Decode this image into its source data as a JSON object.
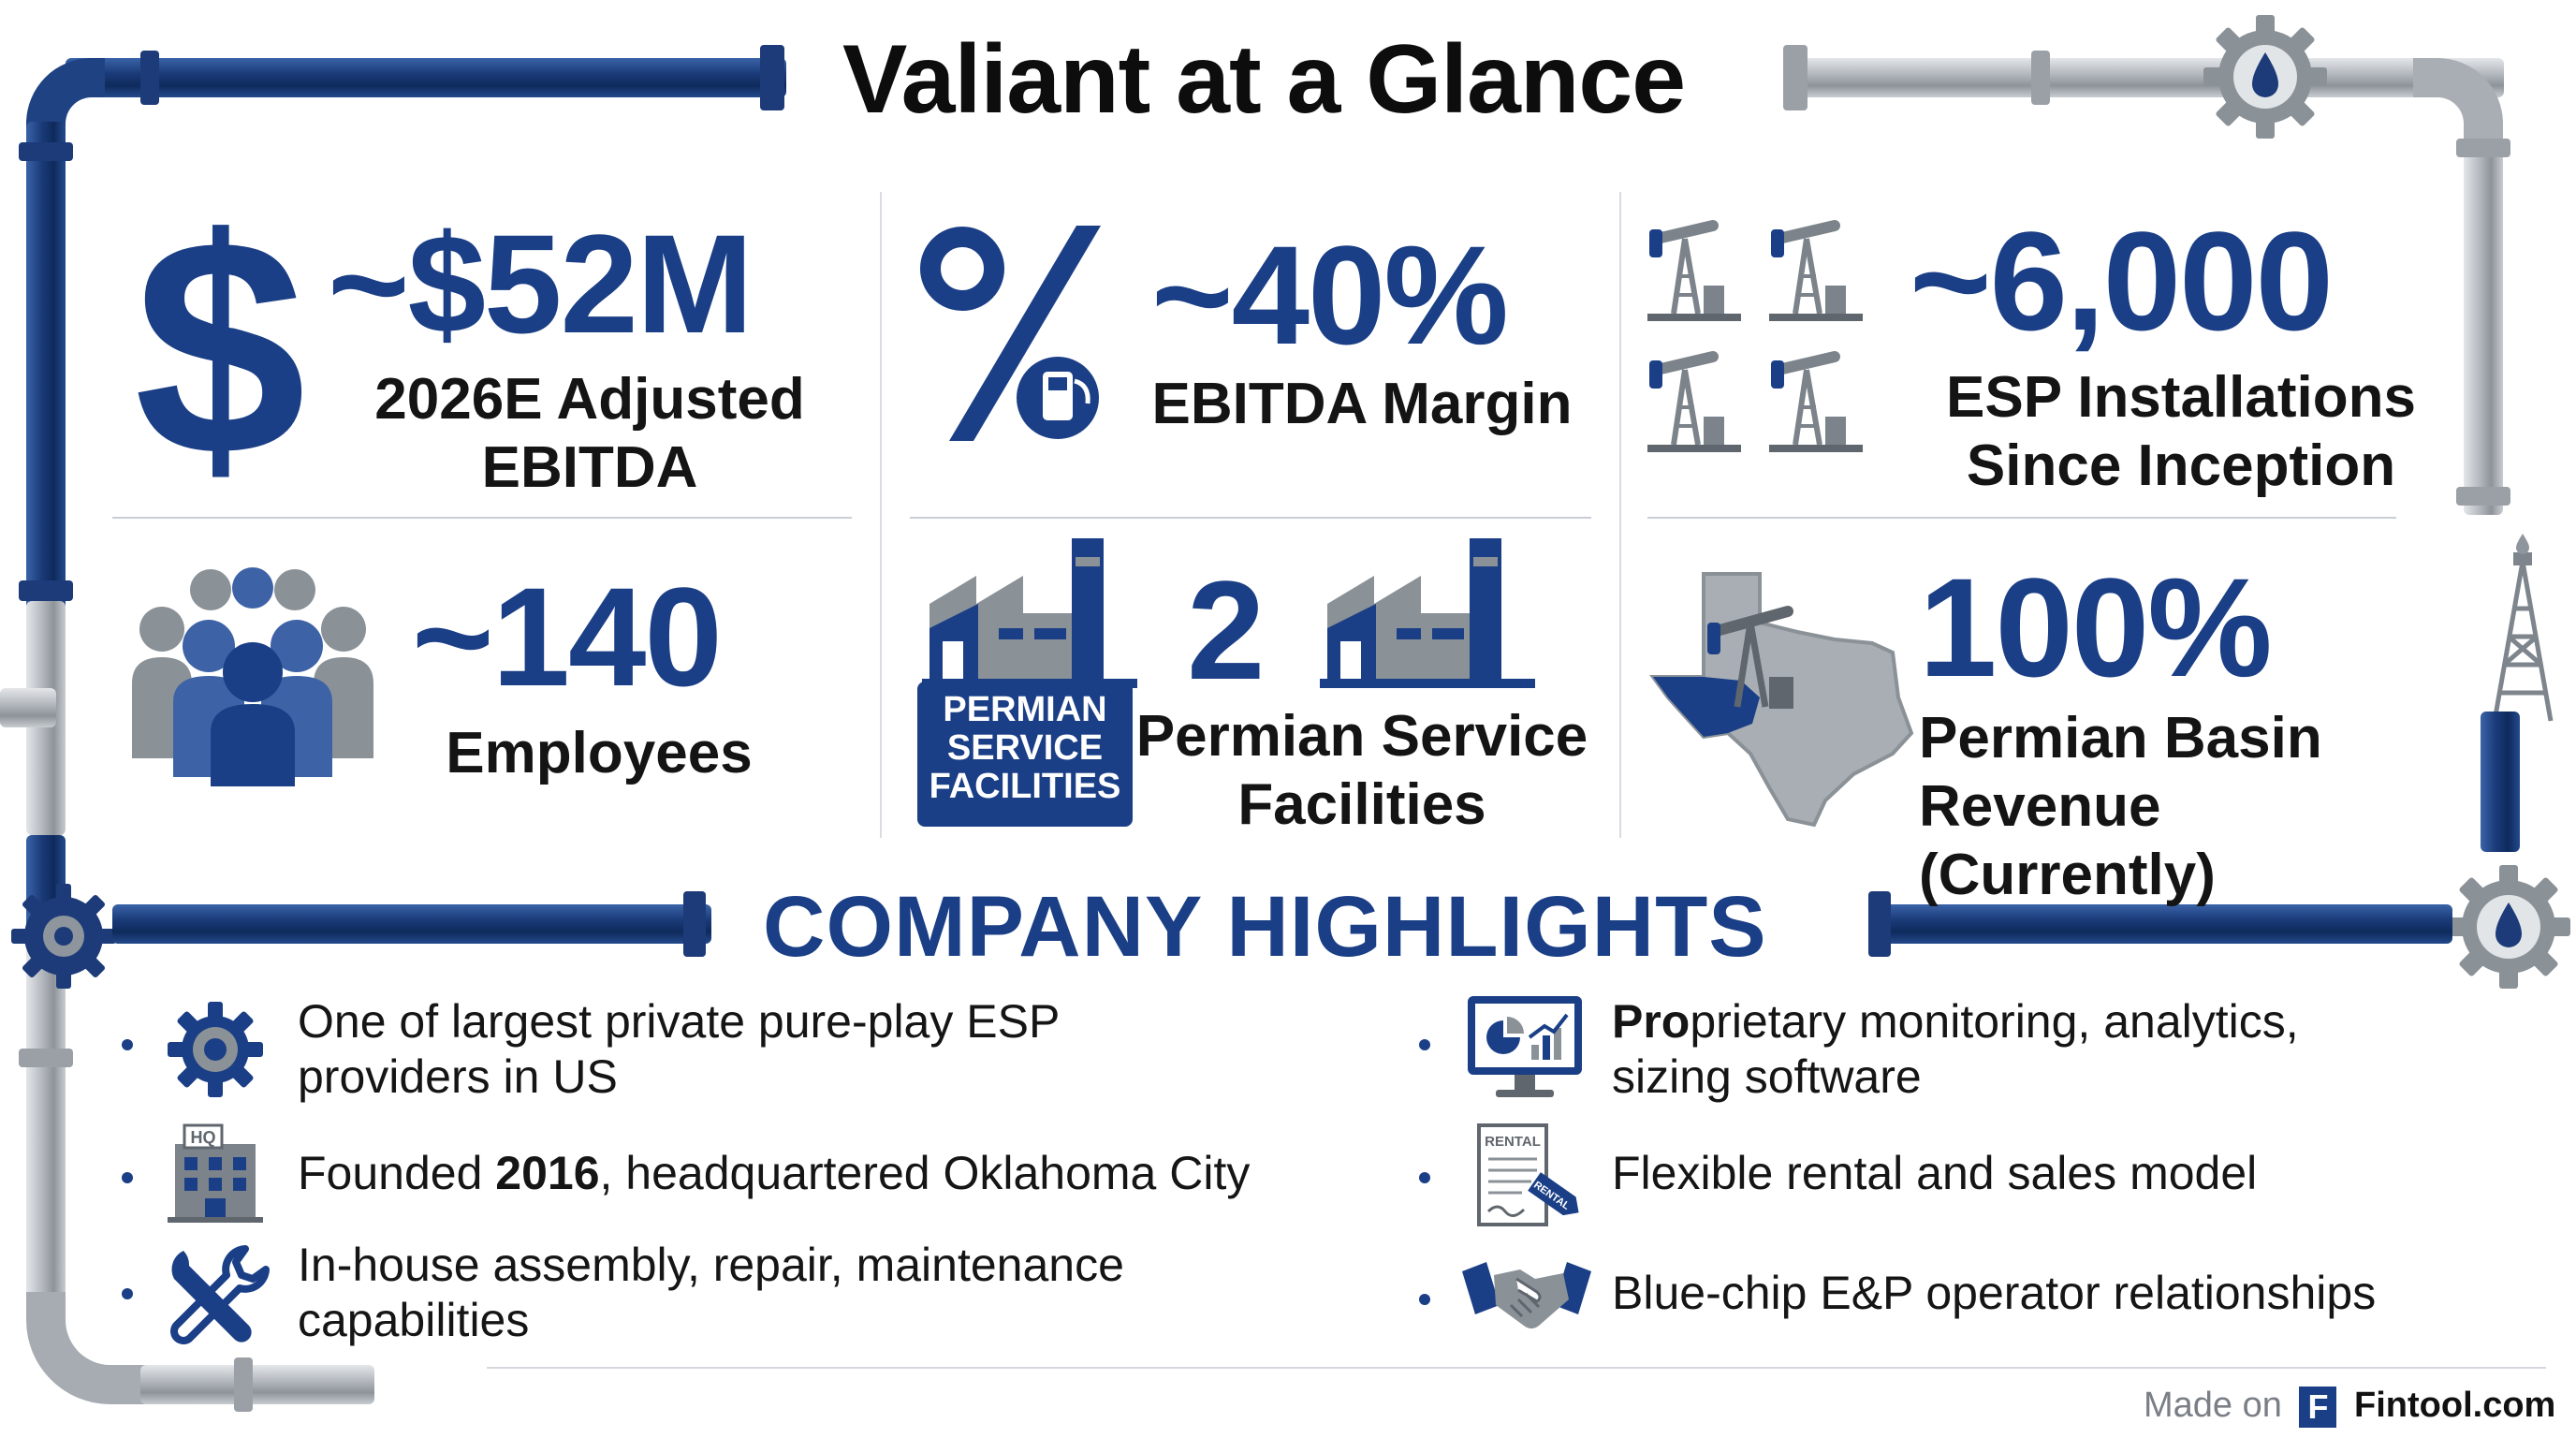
{
  "title": "Valiant at a Glance",
  "colors": {
    "brand_blue": "#1b3f86",
    "pipe_grey": "#a9aeb4",
    "text": "#111111"
  },
  "stats": [
    {
      "icon": "dollar-icon",
      "value": "~$52M",
      "label_line1": "2026E Adjusted",
      "label_line2": "EBITDA"
    },
    {
      "icon": "percent-fuel-icon",
      "value": "~40%",
      "label_line1": "EBITDA Margin"
    },
    {
      "icon": "pumpjacks-icon",
      "value": "~6,000",
      "label_line1": "ESP Installations",
      "label_line2": "Since Inception"
    },
    {
      "icon": "people-icon",
      "value": "~140",
      "label_line1": "Employees"
    },
    {
      "icon": "factory-icon",
      "value": "2",
      "badge_line1": "PERMIAN",
      "badge_line2": "SERVICE",
      "badge_line3": "FACILITIES",
      "label_line1": "Permian Service",
      "label_line2": "Facilities"
    },
    {
      "icon": "texas-map-icon",
      "value": "100%",
      "label_line1": "Permian Basin",
      "label_line2": "Revenue (Currently)"
    }
  ],
  "highlights_title": "COMPANY HIGHLIGHTS",
  "highlights_left": [
    {
      "icon": "gear-icon",
      "line1": "One of largest private pure-play ESP",
      "line2": "providers in US"
    },
    {
      "icon": "hq-building-icon",
      "hq": "HQ",
      "pre": "Founded ",
      "bold": "2016",
      "post": ", headquartered Oklahoma City"
    },
    {
      "icon": "wrench-icon",
      "line1": "In-house assembly, repair, maintenance",
      "line2": "capabilities"
    }
  ],
  "highlights_right": [
    {
      "icon": "monitor-analytics-icon",
      "bold": "Pro",
      "line1_rest": "prietary monitoring, analytics,",
      "line2": "sizing software"
    },
    {
      "icon": "rental-document-icon",
      "doc_label": "RENTAL",
      "tag_label": "RENTAL",
      "line1": "Flexible rental and sales model"
    },
    {
      "icon": "handshake-icon",
      "line1": "Blue-chip E&P operator relationships"
    }
  ],
  "footer": {
    "made_on": "Made on",
    "logo_letter": "F",
    "brand": "Fintool.com"
  }
}
